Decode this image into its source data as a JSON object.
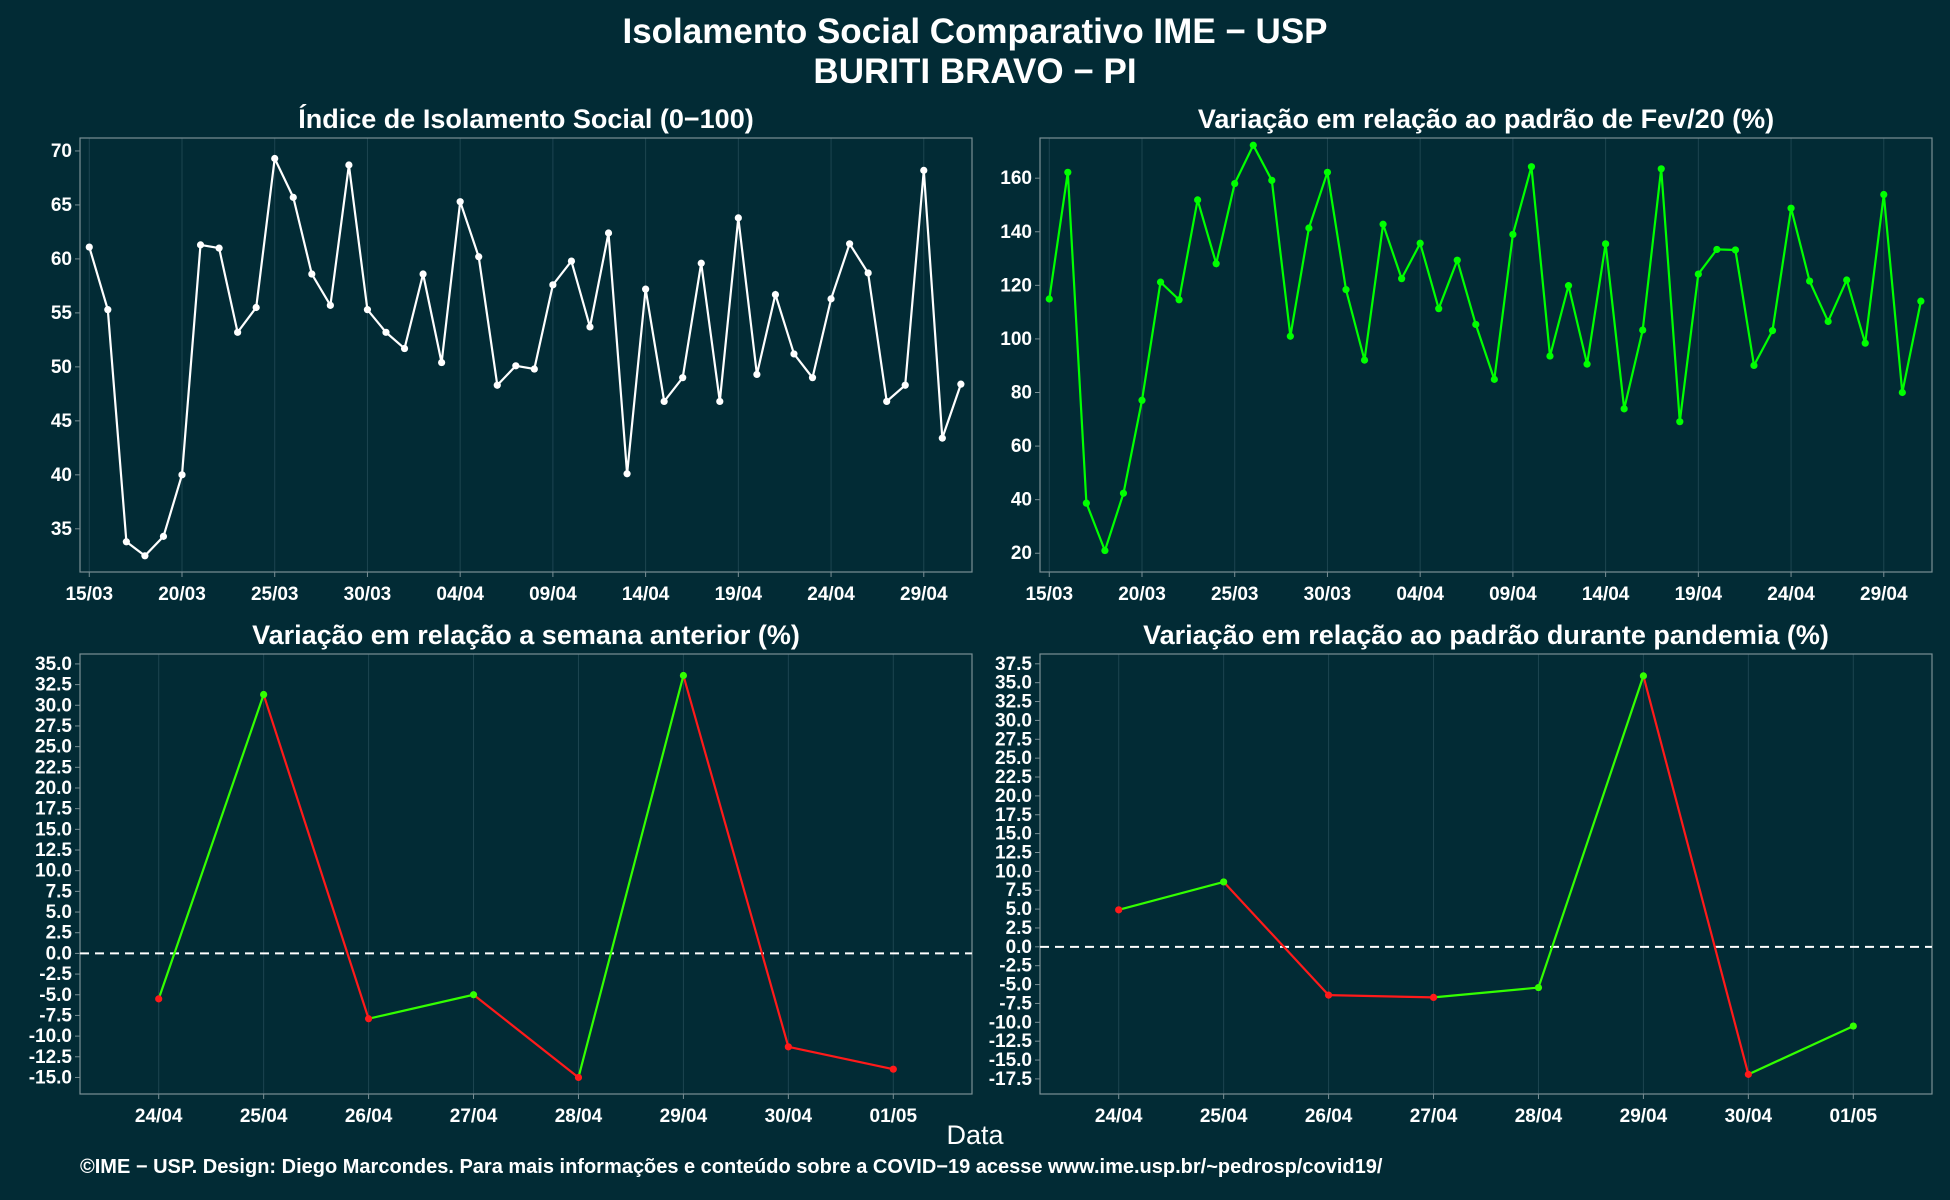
{
  "figure": {
    "title": "Isolamento Social Comparativo IME − USP",
    "subtitle": "BURITI BRAVO − PI",
    "x_axis_title": "Data",
    "footer": "©IME − USP. Design: Diego Marcondes. Para mais informações e conteúdo sobre a COVID−19 acesse www.ime.usp.br/~pedrosp/covid19/"
  },
  "colors": {
    "background": "#022b35",
    "grid": "#1d4550",
    "frame": "#7a8f95",
    "white_series": "#ffffff",
    "green_series": "#00ff00",
    "increase": "#33ff00",
    "decrease": "#ff1a1a",
    "zero_line": "#ffffff"
  },
  "chart_data": [
    {
      "type": "line",
      "title": "Índice de Isolamento Social (0−100)",
      "x_start": "15/03",
      "tick_labels": [
        "15/03",
        "20/03",
        "25/03",
        "30/03",
        "04/04",
        "09/04",
        "14/04",
        "19/04",
        "24/04",
        "29/04"
      ],
      "tick_positions": [
        0,
        5,
        10,
        15,
        20,
        25,
        30,
        35,
        40,
        45
      ],
      "y_ticks": [
        35,
        40,
        45,
        50,
        55,
        60,
        65,
        70
      ],
      "ylim": [
        31,
        71.2
      ],
      "xlim": [
        -0.5,
        47.6
      ],
      "color": "#ffffff",
      "values": [
        61.1,
        55.3,
        33.8,
        32.5,
        34.3,
        40.0,
        61.3,
        61.0,
        53.2,
        55.5,
        69.3,
        65.7,
        58.6,
        55.7,
        68.7,
        55.3,
        53.2,
        51.7,
        58.6,
        50.4,
        65.3,
        60.2,
        48.3,
        50.1,
        49.8,
        57.6,
        59.8,
        53.7,
        62.4,
        40.1,
        57.2,
        46.8,
        49.0,
        59.6,
        46.8,
        63.8,
        49.3,
        56.7,
        51.2,
        49.0,
        56.3,
        61.4,
        58.7,
        46.8,
        48.3,
        68.2,
        43.4,
        48.4
      ]
    },
    {
      "type": "line",
      "title": "Variação em relação ao padrão de Fev/20 (%)",
      "x_start": "15/03",
      "tick_labels": [
        "15/03",
        "20/03",
        "25/03",
        "30/03",
        "04/04",
        "09/04",
        "14/04",
        "19/04",
        "24/04",
        "29/04"
      ],
      "tick_positions": [
        0,
        5,
        10,
        15,
        20,
        25,
        30,
        35,
        40,
        45
      ],
      "y_ticks": [
        20,
        40,
        60,
        80,
        100,
        120,
        140,
        160
      ],
      "ylim": [
        13,
        175
      ],
      "xlim": [
        -0.5,
        47.6
      ],
      "color": "#00ff00",
      "values": [
        114.9,
        162.2,
        38.7,
        21.0,
        42.4,
        77.1,
        121.2,
        114.6,
        151.9,
        128.1,
        158.0,
        172.3,
        159.2,
        101.0,
        141.4,
        162.2,
        118.4,
        92.1,
        142.8,
        122.5,
        135.7,
        111.3,
        129.4,
        105.4,
        84.9,
        139.0,
        164.3,
        93.6,
        119.9,
        90.6,
        135.5,
        73.9,
        103.3,
        163.5,
        69.1,
        124.2,
        133.4,
        133.2,
        90.1,
        103.1,
        148.8,
        121.6,
        106.5,
        122.0,
        98.4,
        153.9,
        80.0,
        114.1
      ]
    },
    {
      "type": "line",
      "title": "Variação em relação a semana anterior (%)",
      "categories": [
        "24/04",
        "25/04",
        "26/04",
        "27/04",
        "28/04",
        "29/04",
        "30/04",
        "01/05"
      ],
      "y_ticks": [
        -15.0,
        -12.5,
        -10.0,
        -7.5,
        -5.0,
        -2.5,
        0.0,
        2.5,
        5.0,
        7.5,
        10.0,
        12.5,
        15.0,
        17.5,
        20.0,
        22.5,
        25.0,
        27.5,
        30.0,
        32.5,
        35.0
      ],
      "ylim": [
        -17.0,
        36.2
      ],
      "values": [
        -5.5,
        31.3,
        -7.9,
        -5.0,
        -15.0,
        33.6,
        -11.3,
        -14.0
      ],
      "reference_line": 0
    },
    {
      "type": "line",
      "title": "Variação em relação ao padrão durante pandemia (%)",
      "categories": [
        "24/04",
        "25/04",
        "26/04",
        "27/04",
        "28/04",
        "29/04",
        "30/04",
        "01/05"
      ],
      "y_ticks": [
        -17.5,
        -15.0,
        -12.5,
        -10.0,
        -7.5,
        -5.0,
        -2.5,
        0.0,
        2.5,
        5.0,
        7.5,
        10.0,
        12.5,
        15.0,
        17.5,
        20.0,
        22.5,
        25.0,
        27.5,
        30.0,
        32.5,
        35.0,
        37.5
      ],
      "ylim": [
        -19.5,
        38.8
      ],
      "values": [
        4.9,
        8.6,
        -6.4,
        -6.7,
        -5.4,
        35.9,
        -16.9,
        -10.5
      ],
      "reference_line": 0
    }
  ]
}
